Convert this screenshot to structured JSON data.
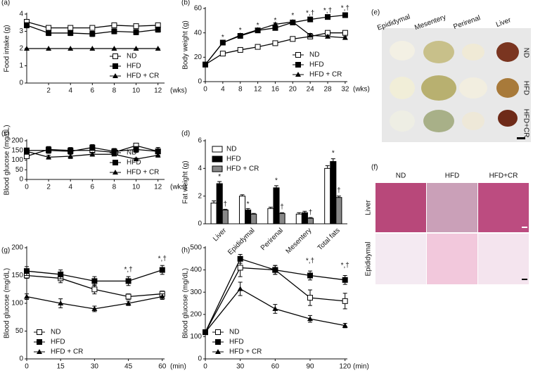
{
  "chart_data": [
    {
      "type": "line",
      "label": "(a)",
      "ylabel": "Food intake (g)",
      "xunit": "(wks)",
      "x": [
        0,
        2,
        4,
        6,
        8,
        10,
        12
      ],
      "xlim": [
        0,
        12.6
      ],
      "xticks": [
        2,
        4,
        6,
        8,
        10,
        12
      ],
      "ylim": [
        0,
        4
      ],
      "yticks": [
        0,
        1,
        2,
        3,
        4
      ],
      "legend": "lower right",
      "series": [
        {
          "name": "ND",
          "color": "#000000",
          "marker": "square-open",
          "values": [
            3.55,
            3.2,
            3.2,
            3.2,
            3.35,
            3.3,
            3.35
          ],
          "errors": [
            0.12,
            0.08,
            0.08,
            0.08,
            0.08,
            0.1,
            0.1
          ]
        },
        {
          "name": "HFD",
          "color": "#000000",
          "marker": "square",
          "values": [
            3.35,
            2.9,
            2.9,
            2.85,
            3.0,
            2.95,
            3.1
          ],
          "errors": [
            0.15,
            0.15,
            0.15,
            0.15,
            0.15,
            0.15,
            0.15
          ]
        },
        {
          "name": "HFD + CR",
          "color": "#000000",
          "marker": "triangle",
          "values": [
            2,
            2,
            2,
            2,
            2,
            2,
            2
          ],
          "errors": [
            0,
            0,
            0,
            0,
            0,
            0,
            0
          ]
        }
      ]
    },
    {
      "type": "line",
      "label": "(b)",
      "ylabel": "Body weight (g)",
      "xunit": "(wks)",
      "x": [
        0,
        4,
        8,
        12,
        16,
        20,
        24,
        28,
        32
      ],
      "xlim": [
        0,
        32.5
      ],
      "xticks": [
        0,
        4,
        8,
        12,
        16,
        20,
        24,
        28,
        32
      ],
      "ylim": [
        0,
        60
      ],
      "yticks": [
        0,
        20,
        40,
        60
      ],
      "legend": "lower right",
      "series": [
        {
          "name": "ND",
          "color": "#000000",
          "marker": "square-open",
          "values": [
            14,
            23,
            26,
            28.5,
            31.5,
            35,
            37,
            40,
            40
          ],
          "errors": [
            1,
            1,
            1,
            1,
            1,
            1,
            1.5,
            1.5,
            1.5
          ]
        },
        {
          "name": "HFD",
          "color": "#000000",
          "marker": "square",
          "values": [
            14,
            32,
            37.5,
            42,
            44,
            48.5,
            51,
            53,
            54.5
          ],
          "errors": [
            1,
            1,
            2,
            1.5,
            1.5,
            1.5,
            1,
            1,
            1
          ]
        },
        {
          "name": "HFD + CR",
          "color": "#000000",
          "marker": "triangle",
          "values": [
            14,
            32,
            38,
            42.5,
            47,
            49,
            38,
            37,
            36
          ],
          "errors": [
            1,
            1,
            1.5,
            1,
            1,
            1,
            1.5,
            1,
            1
          ]
        }
      ],
      "annotations": [
        {
          "text": "*",
          "x": 4,
          "y": 36
        },
        {
          "text": "*",
          "x": 8,
          "y": 42
        },
        {
          "text": "*",
          "x": 12,
          "y": 46
        },
        {
          "text": "*",
          "x": 16,
          "y": 50
        },
        {
          "text": "*",
          "x": 20,
          "y": 54
        },
        {
          "text": "*,†",
          "x": 24,
          "y": 56
        },
        {
          "text": "*,†",
          "x": 28,
          "y": 58
        },
        {
          "text": "*,†",
          "x": 32,
          "y": 60
        }
      ]
    },
    {
      "type": "line",
      "label": "(c)",
      "ylabel": "Blood glucose (mg/dL)",
      "xunit": "(wks)",
      "x": [
        0,
        2,
        4,
        6,
        8,
        10,
        12
      ],
      "xlim": [
        0,
        12.6
      ],
      "xticks": [
        0,
        2,
        4,
        6,
        8,
        10,
        12
      ],
      "ylim": [
        0,
        200
      ],
      "yticks": [
        0,
        50,
        100,
        150,
        200
      ],
      "legend": "lower right",
      "series": [
        {
          "name": "ND",
          "color": "#000000",
          "marker": "square-open",
          "values": [
            120,
            155,
            150,
            150,
            140,
            175,
            145
          ],
          "errors": [
            10,
            15,
            15,
            10,
            15,
            12,
            20
          ]
        },
        {
          "name": "HFD",
          "color": "#000000",
          "marker": "square",
          "values": [
            150,
            150,
            145,
            165,
            145,
            155,
            145
          ],
          "errors": [
            10,
            15,
            15,
            15,
            15,
            15,
            20
          ]
        },
        {
          "name": "HFD + CR",
          "color": "#000000",
          "marker": "triangle",
          "values": [
            145,
            115,
            120,
            130,
            130,
            105,
            125
          ],
          "errors": [
            15,
            10,
            12,
            10,
            8,
            5,
            10
          ]
        }
      ]
    },
    {
      "type": "bar",
      "label": "(d)",
      "ylabel": "Fat weight (g)",
      "categories": [
        "Liver",
        "Epididymal",
        "Perirenal",
        "Mesentery",
        "Total fats"
      ],
      "ylim": [
        0,
        6
      ],
      "yticks": [
        0,
        2,
        4,
        6
      ],
      "legend": "upper left",
      "series": [
        {
          "name": "ND",
          "color": "#ffffff",
          "values": [
            1.5,
            2.0,
            1.1,
            0.7,
            4.0
          ],
          "errors": [
            0.15,
            0.1,
            0.1,
            0.1,
            0.2
          ]
        },
        {
          "name": "HFD",
          "color": "#000000",
          "values": [
            2.9,
            1.0,
            2.6,
            0.8,
            4.5
          ],
          "errors": [
            0.15,
            0.1,
            0.15,
            0.1,
            0.2
          ]
        },
        {
          "name": "HFD + CR",
          "color": "#888888",
          "values": [
            1.0,
            0.7,
            0.75,
            0.4,
            1.9
          ],
          "errors": [
            0.05,
            0.05,
            0.05,
            0.05,
            0.1
          ]
        }
      ],
      "annotations": [
        {
          "text": "*",
          "category": 0,
          "series": 1,
          "y": 3.4
        },
        {
          "text": "†",
          "category": 0,
          "series": 2,
          "y": 1.4
        },
        {
          "text": "*",
          "category": 1,
          "series": 1,
          "y": 1.4
        },
        {
          "text": "*",
          "category": 2,
          "series": 1,
          "y": 3.1
        },
        {
          "text": "†",
          "category": 2,
          "series": 2,
          "y": 1.2
        },
        {
          "text": "†",
          "category": 3,
          "series": 2,
          "y": 0.8
        },
        {
          "text": "*",
          "category": 4,
          "series": 1,
          "y": 5.1
        },
        {
          "text": "†",
          "category": 4,
          "series": 2,
          "y": 2.4
        }
      ]
    },
    {
      "type": "line",
      "label": "(g)",
      "ylabel": "Blood glucose (mg/dL)",
      "xunit": "(min)",
      "x": [
        0,
        15,
        30,
        45,
        60
      ],
      "xlim": [
        0,
        61
      ],
      "xticks": [
        0,
        15,
        30,
        45,
        60
      ],
      "ylim": [
        0,
        200
      ],
      "yticks": [
        0,
        50,
        100,
        150,
        200
      ],
      "legend": "lower left",
      "series": [
        {
          "name": "ND",
          "color": "#000000",
          "marker": "square-open",
          "values": [
            150,
            145,
            125,
            112,
            117
          ],
          "errors": [
            5,
            8,
            8,
            5,
            5
          ]
        },
        {
          "name": "HFD",
          "color": "#000000",
          "marker": "square",
          "values": [
            158,
            152,
            140,
            140,
            160
          ],
          "errors": [
            8,
            8,
            8,
            8,
            8
          ]
        },
        {
          "name": "HFD + CR",
          "color": "#000000",
          "marker": "triangle",
          "values": [
            112,
            100,
            90,
            100,
            112
          ],
          "errors": [
            5,
            8,
            5,
            4,
            5
          ]
        }
      ],
      "annotations": [
        {
          "text": "*,†",
          "x": 45,
          "y": 160
        },
        {
          "text": "*,†",
          "x": 60,
          "y": 180
        }
      ]
    },
    {
      "type": "line",
      "label": "(h)",
      "ylabel": "Blood glucose (mg/dL)",
      "xunit": "(min)",
      "x": [
        0,
        30,
        60,
        90,
        120
      ],
      "xlim": [
        0,
        122
      ],
      "xticks": [
        0,
        30,
        60,
        90,
        120
      ],
      "ylim": [
        0,
        500
      ],
      "yticks": [
        0,
        100,
        200,
        300,
        400,
        500
      ],
      "legend": "lower left",
      "series": [
        {
          "name": "ND",
          "color": "#000000",
          "marker": "square-open",
          "values": [
            120,
            410,
            400,
            275,
            260
          ],
          "errors": [
            10,
            40,
            20,
            35,
            35
          ]
        },
        {
          "name": "HFD",
          "color": "#000000",
          "marker": "square",
          "values": [
            120,
            450,
            400,
            375,
            355
          ],
          "errors": [
            10,
            20,
            20,
            20,
            20
          ]
        },
        {
          "name": "HFD + CR",
          "color": "#000000",
          "marker": "triangle",
          "values": [
            120,
            315,
            225,
            180,
            150
          ],
          "errors": [
            10,
            30,
            20,
            15,
            10
          ]
        }
      ],
      "annotations": [
        {
          "text": "*,†",
          "x": 90,
          "y": 440
        },
        {
          "text": "*,†",
          "x": 120,
          "y": 420
        }
      ]
    }
  ],
  "photos": {
    "e": {
      "label": "(e)",
      "columns": [
        "Epididymal",
        "Mesentery",
        "Perirenal",
        "Liver"
      ],
      "rows": [
        "ND",
        "HFD",
        "HFD+CR"
      ]
    },
    "f": {
      "label": "(f)",
      "columns": [
        "ND",
        "HFD",
        "HFD+CR"
      ],
      "rows": [
        "Liver",
        "Epididymal"
      ]
    }
  }
}
